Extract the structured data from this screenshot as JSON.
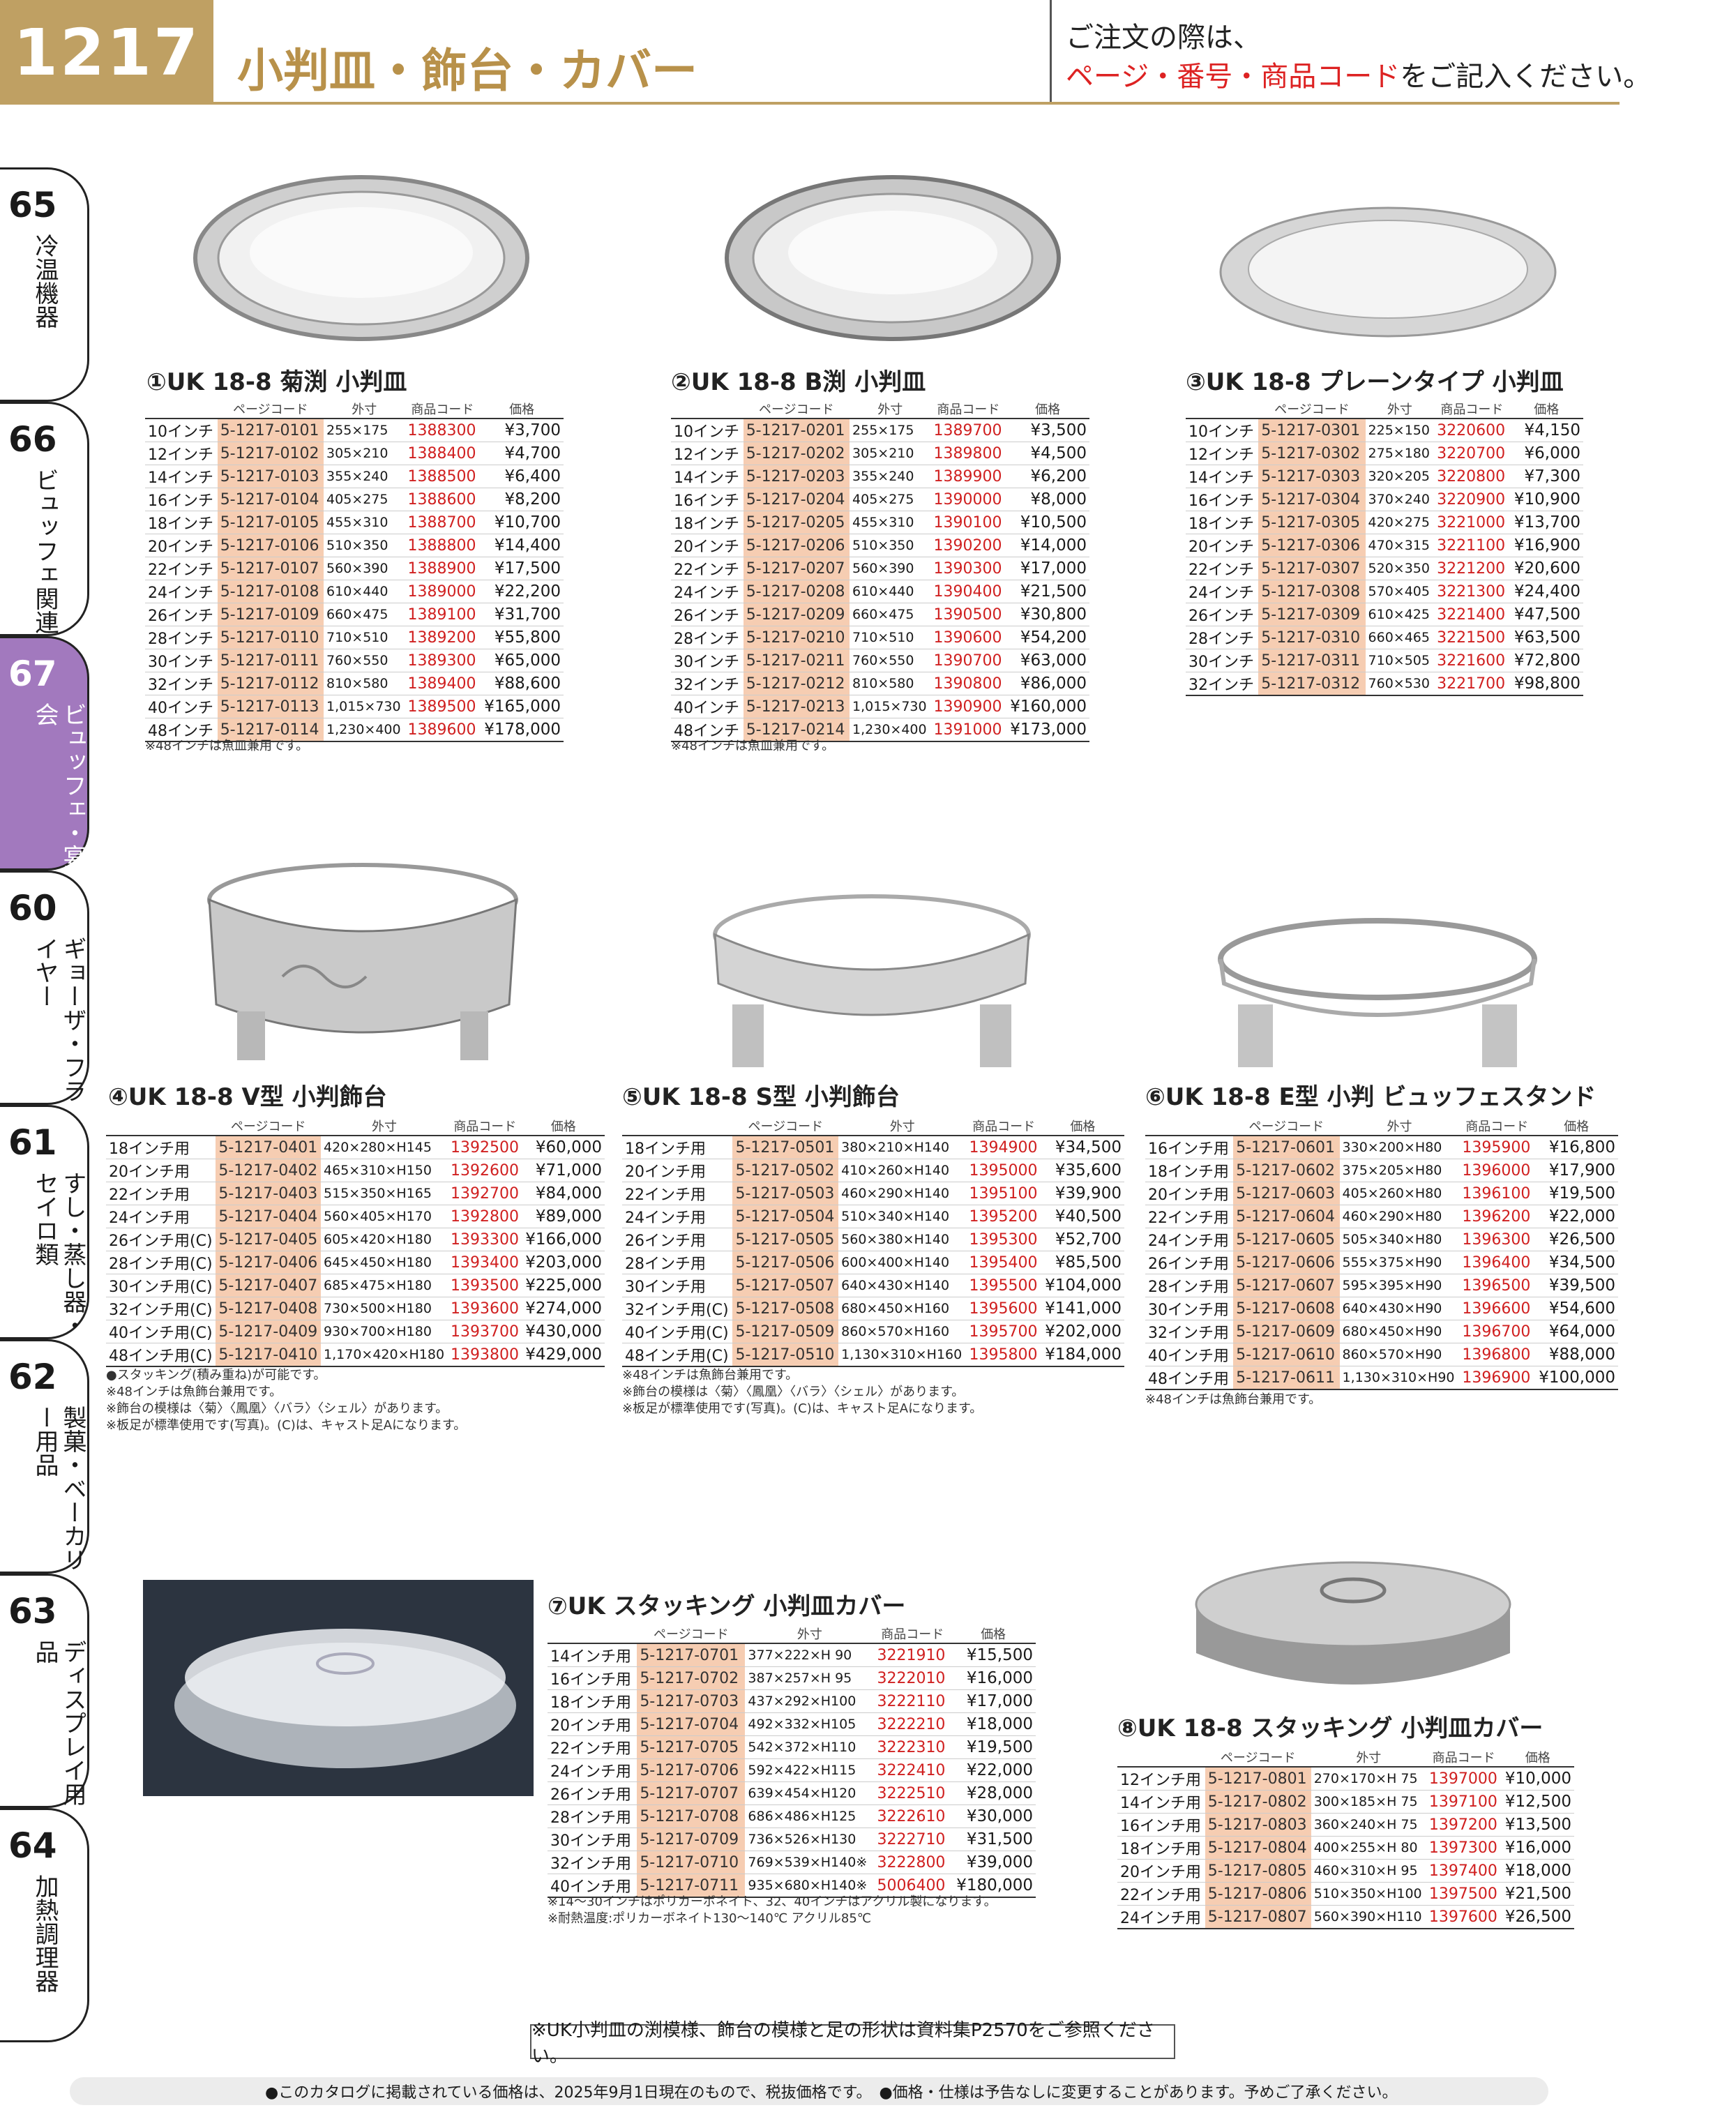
{
  "header": {
    "page_number": "1217",
    "title": "小判皿・飾台・カバー",
    "order_note_line1": "ご注文の際は、",
    "order_note_red": "ページ・番号・商品コード",
    "order_note_tail": "をご記入ください。"
  },
  "sidebar": [
    {
      "num": "65",
      "label": "冷温機器"
    },
    {
      "num": "66",
      "label": "ビュッフェ関連"
    },
    {
      "num": "67",
      "label": "ビュッフェ・宴会"
    },
    {
      "num": "60",
      "label": "ギョーザ・フライヤー"
    },
    {
      "num": "61",
      "label": "すし・蒸し器・セイロ類"
    },
    {
      "num": "62",
      "label": "製菓・ベーカリー用品"
    },
    {
      "num": "63",
      "label": "ディスプレイ用品"
    },
    {
      "num": "64",
      "label": "加熱調理器"
    }
  ],
  "col_headers": {
    "page_code": "ページコード",
    "dim": "外寸",
    "product_code": "商品コード",
    "price": "価格"
  },
  "products": [
    {
      "title": "①UK 18-8 菊渕 小判皿",
      "rows": [
        [
          "10インチ",
          "5-1217-0101",
          "255×175",
          "1388300",
          "¥3,700"
        ],
        [
          "12インチ",
          "5-1217-0102",
          "305×210",
          "1388400",
          "¥4,700"
        ],
        [
          "14インチ",
          "5-1217-0103",
          "355×240",
          "1388500",
          "¥6,400"
        ],
        [
          "16インチ",
          "5-1217-0104",
          "405×275",
          "1388600",
          "¥8,200"
        ],
        [
          "18インチ",
          "5-1217-0105",
          "455×310",
          "1388700",
          "¥10,700"
        ],
        [
          "20インチ",
          "5-1217-0106",
          "510×350",
          "1388800",
          "¥14,400"
        ],
        [
          "22インチ",
          "5-1217-0107",
          "560×390",
          "1388900",
          "¥17,500"
        ],
        [
          "24インチ",
          "5-1217-0108",
          "610×440",
          "1389000",
          "¥22,200"
        ],
        [
          "26インチ",
          "5-1217-0109",
          "660×475",
          "1389100",
          "¥31,700"
        ],
        [
          "28インチ",
          "5-1217-0110",
          "710×510",
          "1389200",
          "¥55,800"
        ],
        [
          "30インチ",
          "5-1217-0111",
          "760×550",
          "1389300",
          "¥65,000"
        ],
        [
          "32インチ",
          "5-1217-0112",
          "810×580",
          "1389400",
          "¥88,600"
        ],
        [
          "40インチ",
          "5-1217-0113",
          "1,015×730",
          "1389500",
          "¥165,000"
        ],
        [
          "48インチ",
          "5-1217-0114",
          "1,230×400",
          "1389600",
          "¥178,000"
        ]
      ],
      "notes": [
        "※48インチは魚皿兼用です。"
      ]
    },
    {
      "title": "②UK 18-8 B渕 小判皿",
      "rows": [
        [
          "10インチ",
          "5-1217-0201",
          "255×175",
          "1389700",
          "¥3,500"
        ],
        [
          "12インチ",
          "5-1217-0202",
          "305×210",
          "1389800",
          "¥4,500"
        ],
        [
          "14インチ",
          "5-1217-0203",
          "355×240",
          "1389900",
          "¥6,200"
        ],
        [
          "16インチ",
          "5-1217-0204",
          "405×275",
          "1390000",
          "¥8,000"
        ],
        [
          "18インチ",
          "5-1217-0205",
          "455×310",
          "1390100",
          "¥10,500"
        ],
        [
          "20インチ",
          "5-1217-0206",
          "510×350",
          "1390200",
          "¥14,000"
        ],
        [
          "22インチ",
          "5-1217-0207",
          "560×390",
          "1390300",
          "¥17,000"
        ],
        [
          "24インチ",
          "5-1217-0208",
          "610×440",
          "1390400",
          "¥21,500"
        ],
        [
          "26インチ",
          "5-1217-0209",
          "660×475",
          "1390500",
          "¥30,800"
        ],
        [
          "28インチ",
          "5-1217-0210",
          "710×510",
          "1390600",
          "¥54,200"
        ],
        [
          "30インチ",
          "5-1217-0211",
          "760×550",
          "1390700",
          "¥63,000"
        ],
        [
          "32インチ",
          "5-1217-0212",
          "810×580",
          "1390800",
          "¥86,000"
        ],
        [
          "40インチ",
          "5-1217-0213",
          "1,015×730",
          "1390900",
          "¥160,000"
        ],
        [
          "48インチ",
          "5-1217-0214",
          "1,230×400",
          "1391000",
          "¥173,000"
        ]
      ],
      "notes": [
        "※48インチは魚皿兼用です。"
      ]
    },
    {
      "title": "③UK 18-8 プレーンタイプ 小判皿",
      "rows": [
        [
          "10インチ",
          "5-1217-0301",
          "225×150",
          "3220600",
          "¥4,150"
        ],
        [
          "12インチ",
          "5-1217-0302",
          "275×180",
          "3220700",
          "¥6,000"
        ],
        [
          "14インチ",
          "5-1217-0303",
          "320×205",
          "3220800",
          "¥7,300"
        ],
        [
          "16インチ",
          "5-1217-0304",
          "370×240",
          "3220900",
          "¥10,900"
        ],
        [
          "18インチ",
          "5-1217-0305",
          "420×275",
          "3221000",
          "¥13,700"
        ],
        [
          "20インチ",
          "5-1217-0306",
          "470×315",
          "3221100",
          "¥16,900"
        ],
        [
          "22インチ",
          "5-1217-0307",
          "520×350",
          "3221200",
          "¥20,600"
        ],
        [
          "24インチ",
          "5-1217-0308",
          "570×405",
          "3221300",
          "¥24,400"
        ],
        [
          "26インチ",
          "5-1217-0309",
          "610×425",
          "3221400",
          "¥47,500"
        ],
        [
          "28インチ",
          "5-1217-0310",
          "660×465",
          "3221500",
          "¥63,500"
        ],
        [
          "30インチ",
          "5-1217-0311",
          "710×505",
          "3221600",
          "¥72,800"
        ],
        [
          "32インチ",
          "5-1217-0312",
          "760×530",
          "3221700",
          "¥98,800"
        ]
      ],
      "notes": []
    },
    {
      "title": "④UK 18-8 V型 小判飾台",
      "rows": [
        [
          "18インチ用",
          "5-1217-0401",
          "420×280×H145",
          "1392500",
          "¥60,000"
        ],
        [
          "20インチ用",
          "5-1217-0402",
          "465×310×H150",
          "1392600",
          "¥71,000"
        ],
        [
          "22インチ用",
          "5-1217-0403",
          "515×350×H165",
          "1392700",
          "¥84,000"
        ],
        [
          "24インチ用",
          "5-1217-0404",
          "560×405×H170",
          "1392800",
          "¥89,000"
        ],
        [
          "26インチ用(C)",
          "5-1217-0405",
          "605×420×H180",
          "1393300",
          "¥166,000"
        ],
        [
          "28インチ用(C)",
          "5-1217-0406",
          "645×450×H180",
          "1393400",
          "¥203,000"
        ],
        [
          "30インチ用(C)",
          "5-1217-0407",
          "685×475×H180",
          "1393500",
          "¥225,000"
        ],
        [
          "32インチ用(C)",
          "5-1217-0408",
          "730×500×H180",
          "1393600",
          "¥274,000"
        ],
        [
          "40インチ用(C)",
          "5-1217-0409",
          "930×700×H180",
          "1393700",
          "¥430,000"
        ],
        [
          "48インチ用(C)",
          "5-1217-0410",
          "1,170×420×H180",
          "1393800",
          "¥429,000"
        ]
      ],
      "notes": [
        "●スタッキング(積み重ね)が可能です。",
        "※48インチは魚飾台兼用です。",
        "※飾台の模様は〈菊〉〈鳳凰〉〈バラ〉〈シェル〉があります。",
        "※板足が標準使用です(写真)。(C)は、キャスト足Aになります。"
      ]
    },
    {
      "title": "⑤UK 18-8 S型 小判飾台",
      "rows": [
        [
          "18インチ用",
          "5-1217-0501",
          "380×210×H140",
          "1394900",
          "¥34,500"
        ],
        [
          "20インチ用",
          "5-1217-0502",
          "410×260×H140",
          "1395000",
          "¥35,600"
        ],
        [
          "22インチ用",
          "5-1217-0503",
          "460×290×H140",
          "1395100",
          "¥39,900"
        ],
        [
          "24インチ用",
          "5-1217-0504",
          "510×340×H140",
          "1395200",
          "¥40,500"
        ],
        [
          "26インチ用",
          "5-1217-0505",
          "560×380×H140",
          "1395300",
          "¥52,700"
        ],
        [
          "28インチ用",
          "5-1217-0506",
          "600×400×H140",
          "1395400",
          "¥85,500"
        ],
        [
          "30インチ用",
          "5-1217-0507",
          "640×430×H140",
          "1395500",
          "¥104,000"
        ],
        [
          "32インチ用(C)",
          "5-1217-0508",
          "680×450×H160",
          "1395600",
          "¥141,000"
        ],
        [
          "40インチ用(C)",
          "5-1217-0509",
          "860×570×H160",
          "1395700",
          "¥202,000"
        ],
        [
          "48インチ用(C)",
          "5-1217-0510",
          "1,130×310×H160",
          "1395800",
          "¥184,000"
        ]
      ],
      "notes": [
        "※48インチは魚飾台兼用です。",
        "※飾台の模様は〈菊〉〈鳳凰〉〈バラ〉〈シェル〉があります。",
        "※板足が標準使用です(写真)。(C)は、キャスト足Aになります。"
      ]
    },
    {
      "title": "⑥UK 18-8 E型 小判 ビュッフェスタンド",
      "rows": [
        [
          "16インチ用",
          "5-1217-0601",
          "330×200×H80",
          "1395900",
          "¥16,800"
        ],
        [
          "18インチ用",
          "5-1217-0602",
          "375×205×H80",
          "1396000",
          "¥17,900"
        ],
        [
          "20インチ用",
          "5-1217-0603",
          "405×260×H80",
          "1396100",
          "¥19,500"
        ],
        [
          "22インチ用",
          "5-1217-0604",
          "460×290×H80",
          "1396200",
          "¥22,000"
        ],
        [
          "24インチ用",
          "5-1217-0605",
          "505×340×H80",
          "1396300",
          "¥26,500"
        ],
        [
          "26インチ用",
          "5-1217-0606",
          "555×375×H90",
          "1396400",
          "¥34,500"
        ],
        [
          "28インチ用",
          "5-1217-0607",
          "595×395×H90",
          "1396500",
          "¥39,500"
        ],
        [
          "30インチ用",
          "5-1217-0608",
          "640×430×H90",
          "1396600",
          "¥54,600"
        ],
        [
          "32インチ用",
          "5-1217-0609",
          "680×450×H90",
          "1396700",
          "¥64,000"
        ],
        [
          "40インチ用",
          "5-1217-0610",
          "860×570×H90",
          "1396800",
          "¥88,000"
        ],
        [
          "48インチ用",
          "5-1217-0611",
          "1,130×310×H90",
          "1396900",
          "¥100,000"
        ]
      ],
      "notes": [
        "※48インチは魚飾台兼用です。"
      ]
    },
    {
      "title": "⑦UK スタッキング 小判皿カバー",
      "rows": [
        [
          "14インチ用",
          "5-1217-0701",
          "377×222×H 90",
          "3221910",
          "¥15,500"
        ],
        [
          "16インチ用",
          "5-1217-0702",
          "387×257×H 95",
          "3222010",
          "¥16,000"
        ],
        [
          "18インチ用",
          "5-1217-0703",
          "437×292×H100",
          "3222110",
          "¥17,000"
        ],
        [
          "20インチ用",
          "5-1217-0704",
          "492×332×H105",
          "3222210",
          "¥18,000"
        ],
        [
          "22インチ用",
          "5-1217-0705",
          "542×372×H110",
          "3222310",
          "¥19,500"
        ],
        [
          "24インチ用",
          "5-1217-0706",
          "592×422×H115",
          "3222410",
          "¥22,000"
        ],
        [
          "26インチ用",
          "5-1217-0707",
          "639×454×H120",
          "3222510",
          "¥28,000"
        ],
        [
          "28インチ用",
          "5-1217-0708",
          "686×486×H125",
          "3222610",
          "¥30,000"
        ],
        [
          "30インチ用",
          "5-1217-0709",
          "736×526×H130",
          "3222710",
          "¥31,500"
        ],
        [
          "32インチ用",
          "5-1217-0710",
          "769×539×H140※",
          "3222800",
          "¥39,000"
        ],
        [
          "40インチ用",
          "5-1217-0711",
          "935×680×H140※",
          "5006400",
          "¥180,000"
        ]
      ],
      "notes": [
        "※14〜30インチはポリカーボネイト、32、40インチはアクリル製になります。",
        "※耐熱温度:ポリカーボネイト130〜140℃ アクリル85℃"
      ]
    },
    {
      "title": "⑧UK 18-8 スタッキング 小判皿カバー",
      "rows": [
        [
          "12インチ用",
          "5-1217-0801",
          "270×170×H 75",
          "1397000",
          "¥10,000"
        ],
        [
          "14インチ用",
          "5-1217-0802",
          "300×185×H 75",
          "1397100",
          "¥12,500"
        ],
        [
          "16インチ用",
          "5-1217-0803",
          "360×240×H 75",
          "1397200",
          "¥13,500"
        ],
        [
          "18インチ用",
          "5-1217-0804",
          "400×255×H 80",
          "1397300",
          "¥16,000"
        ],
        [
          "20インチ用",
          "5-1217-0805",
          "460×310×H 95",
          "1397400",
          "¥18,000"
        ],
        [
          "22インチ用",
          "5-1217-0806",
          "510×350×H100",
          "1397500",
          "¥21,500"
        ],
        [
          "24インチ用",
          "5-1217-0807",
          "560×390×H110",
          "1397600",
          "¥26,500"
        ]
      ],
      "notes": []
    }
  ],
  "bottom_note": "※UK小判皿の渕模様、飾台の模様と足の形状は資料集P2570をご参照ください。",
  "footer": "●このカタログに掲載されている価格は、2025年9月1日現在のもので、税抜価格です。　●価格・仕様は予告なしに変更することがあります。予めご了承ください。"
}
